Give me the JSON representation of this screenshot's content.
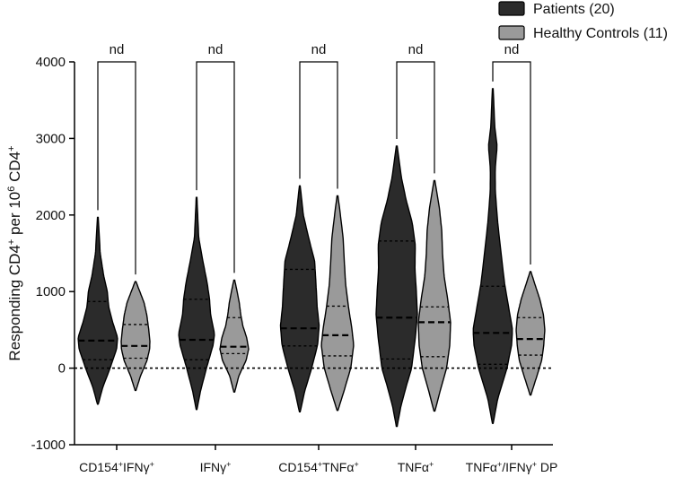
{
  "chart_data": {
    "type": "violin",
    "title": "",
    "ylabel_parts": [
      "Responding CD4",
      "+",
      " per 10",
      "6",
      " CD4",
      "+"
    ],
    "xlabel": "",
    "ylim": [
      -1000,
      4000
    ],
    "yticks": [
      -1000,
      0,
      1000,
      2000,
      3000,
      4000
    ],
    "reference_line_y": 0,
    "legend_position": "top-right",
    "legend": [
      {
        "label": "Patients (20)",
        "color": "#2b2b2b"
      },
      {
        "label": "Healthy Controls (11)",
        "color": "#9a9a9a"
      }
    ],
    "categories": [
      {
        "parts": [
          "CD154",
          "+",
          "IFNγ",
          "+"
        ]
      },
      {
        "parts": [
          "IFNγ",
          "+"
        ]
      },
      {
        "parts": [
          "CD154",
          "+",
          "TNFα",
          "+"
        ]
      },
      {
        "parts": [
          "TNFα",
          "+"
        ]
      },
      {
        "parts": [
          "TNFα",
          "+",
          "/IFNγ",
          "+",
          " DP"
        ]
      }
    ],
    "series": [
      {
        "name": "Patients (20)",
        "color": "#2b2b2b",
        "violins": [
          {
            "min": -470,
            "max": 1970,
            "q1": 110,
            "median": 360,
            "q3": 870,
            "profile": [
              [
                -470,
                0.02
              ],
              [
                -250,
                0.25
              ],
              [
                0,
                0.62
              ],
              [
                250,
                0.95
              ],
              [
                400,
                1.0
              ],
              [
                600,
                0.75
              ],
              [
                800,
                0.55
              ],
              [
                1000,
                0.48
              ],
              [
                1200,
                0.3
              ],
              [
                1500,
                0.12
              ],
              [
                1970,
                0.02
              ]
            ]
          },
          {
            "min": -540,
            "max": 2230,
            "q1": 110,
            "median": 370,
            "q3": 900,
            "profile": [
              [
                -540,
                0.02
              ],
              [
                -300,
                0.22
              ],
              [
                0,
                0.55
              ],
              [
                300,
                0.92
              ],
              [
                450,
                1.0
              ],
              [
                700,
                0.78
              ],
              [
                900,
                0.72
              ],
              [
                1100,
                0.6
              ],
              [
                1400,
                0.35
              ],
              [
                1700,
                0.12
              ],
              [
                2230,
                0.02
              ]
            ]
          },
          {
            "min": -570,
            "max": 2380,
            "q1": 290,
            "median": 520,
            "q3": 1290,
            "profile": [
              [
                -570,
                0.02
              ],
              [
                -300,
                0.25
              ],
              [
                0,
                0.6
              ],
              [
                300,
                0.9
              ],
              [
                550,
                0.98
              ],
              [
                800,
                0.88
              ],
              [
                1100,
                0.82
              ],
              [
                1400,
                0.75
              ],
              [
                1700,
                0.45
              ],
              [
                2000,
                0.18
              ],
              [
                2380,
                0.02
              ]
            ]
          },
          {
            "min": -760,
            "max": 2900,
            "q1": 120,
            "median": 660,
            "q3": 1660,
            "profile": [
              [
                -760,
                0.02
              ],
              [
                -500,
                0.2
              ],
              [
                -200,
                0.5
              ],
              [
                0,
                0.72
              ],
              [
                400,
                0.9
              ],
              [
                700,
                1.0
              ],
              [
                1000,
                0.95
              ],
              [
                1300,
                0.88
              ],
              [
                1600,
                0.9
              ],
              [
                1900,
                0.75
              ],
              [
                2200,
                0.45
              ],
              [
                2500,
                0.22
              ],
              [
                2900,
                0.02
              ]
            ]
          },
          {
            "min": -720,
            "max": 3650,
            "q1": 50,
            "median": 460,
            "q3": 1070,
            "profile": [
              [
                -720,
                0.02
              ],
              [
                -400,
                0.25
              ],
              [
                0,
                0.72
              ],
              [
                300,
                0.95
              ],
              [
                500,
                1.0
              ],
              [
                800,
                0.8
              ],
              [
                1100,
                0.6
              ],
              [
                1500,
                0.42
              ],
              [
                1900,
                0.25
              ],
              [
                2300,
                0.13
              ],
              [
                2600,
                0.12
              ],
              [
                2900,
                0.22
              ],
              [
                3150,
                0.1
              ],
              [
                3650,
                0.02
              ]
            ]
          }
        ]
      },
      {
        "name": "Healthy Controls (11)",
        "color": "#9a9a9a",
        "violins": [
          {
            "min": -290,
            "max": 1130,
            "q1": 130,
            "median": 290,
            "q3": 570,
            "profile": [
              [
                -290,
                0.03
              ],
              [
                -100,
                0.35
              ],
              [
                100,
                0.8
              ],
              [
                250,
                0.98
              ],
              [
                350,
                1.0
              ],
              [
                500,
                0.92
              ],
              [
                700,
                0.78
              ],
              [
                850,
                0.6
              ],
              [
                1000,
                0.3
              ],
              [
                1130,
                0.03
              ]
            ]
          },
          {
            "min": -310,
            "max": 1150,
            "q1": 190,
            "median": 280,
            "q3": 660,
            "profile": [
              [
                -310,
                0.03
              ],
              [
                -100,
                0.32
              ],
              [
                100,
                0.82
              ],
              [
                250,
                1.0
              ],
              [
                400,
                0.86
              ],
              [
                550,
                0.6
              ],
              [
                700,
                0.45
              ],
              [
                850,
                0.35
              ],
              [
                1000,
                0.2
              ],
              [
                1150,
                0.03
              ]
            ]
          },
          {
            "min": -550,
            "max": 2250,
            "q1": 160,
            "median": 430,
            "q3": 810,
            "profile": [
              [
                -550,
                0.03
              ],
              [
                -300,
                0.4
              ],
              [
                0,
                0.82
              ],
              [
                300,
                1.0
              ],
              [
                500,
                0.9
              ],
              [
                800,
                0.68
              ],
              [
                1100,
                0.5
              ],
              [
                1400,
                0.42
              ],
              [
                1700,
                0.35
              ],
              [
                2000,
                0.18
              ],
              [
                2250,
                0.03
              ]
            ]
          },
          {
            "min": -560,
            "max": 2450,
            "q1": 150,
            "median": 600,
            "q3": 800,
            "profile": [
              [
                -560,
                0.03
              ],
              [
                -300,
                0.35
              ],
              [
                0,
                0.75
              ],
              [
                300,
                0.95
              ],
              [
                600,
                1.0
              ],
              [
                900,
                0.82
              ],
              [
                1200,
                0.6
              ],
              [
                1500,
                0.5
              ],
              [
                1800,
                0.45
              ],
              [
                2100,
                0.3
              ],
              [
                2450,
                0.03
              ]
            ]
          },
          {
            "min": -350,
            "max": 1260,
            "q1": 170,
            "median": 380,
            "q3": 660,
            "profile": [
              [
                -350,
                0.03
              ],
              [
                -100,
                0.45
              ],
              [
                100,
                0.78
              ],
              [
                300,
                0.92
              ],
              [
                500,
                1.0
              ],
              [
                700,
                0.9
              ],
              [
                900,
                0.65
              ],
              [
                1100,
                0.3
              ],
              [
                1260,
                0.03
              ]
            ]
          }
        ]
      }
    ],
    "comparisons": [
      {
        "category_index": 0,
        "label": "nd",
        "y": 4000
      },
      {
        "category_index": 1,
        "label": "nd",
        "y": 4000
      },
      {
        "category_index": 2,
        "label": "nd",
        "y": 4000
      },
      {
        "category_index": 3,
        "label": "nd",
        "y": 4000
      },
      {
        "category_index": 4,
        "label": "nd",
        "y": 4000
      }
    ]
  }
}
